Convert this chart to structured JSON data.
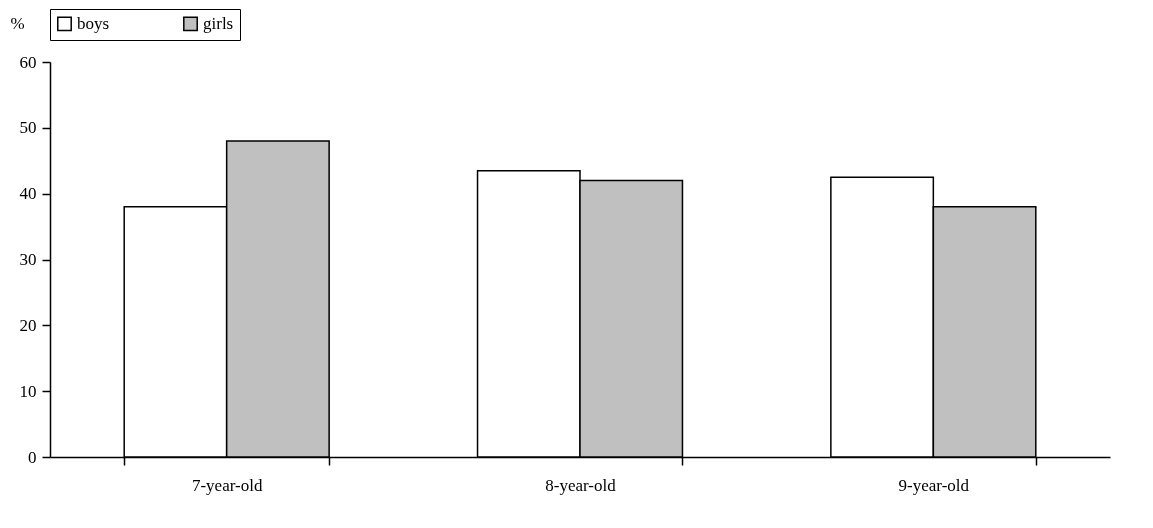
{
  "chart_data": {
    "type": "bar",
    "ylabel": "%",
    "categories": [
      "7-year-old",
      "8-year-old",
      "9-year-old"
    ],
    "series": [
      {
        "name": "boys",
        "color": "#ffffff",
        "values": [
          38,
          43.5,
          42.5
        ]
      },
      {
        "name": "girls",
        "color": "#c0c0c0",
        "values": [
          48,
          42,
          38
        ]
      }
    ],
    "ylim": [
      0,
      60
    ],
    "yticks": [
      0,
      10,
      20,
      30,
      40,
      50,
      60
    ],
    "grid": false,
    "legend": "top"
  }
}
